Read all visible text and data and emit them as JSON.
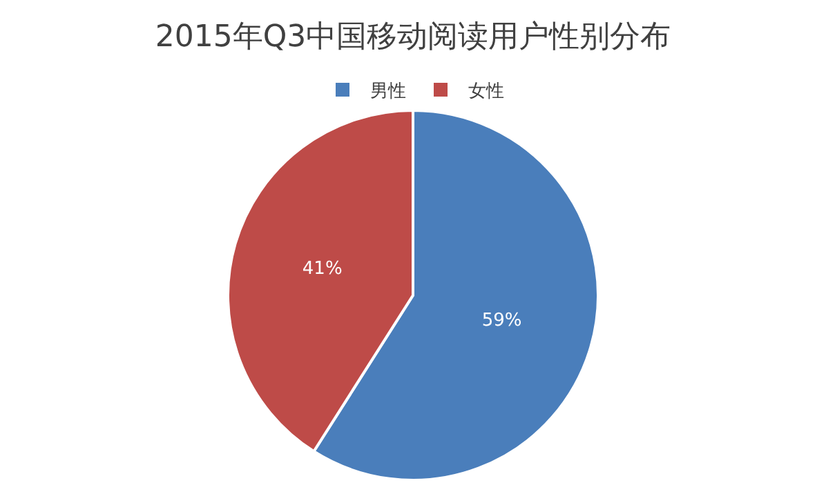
{
  "chart_data": {
    "type": "pie",
    "title": "2015年Q3中国移动阅读用户性别分布",
    "categories": [
      "男性",
      "女性"
    ],
    "values": [
      59,
      41
    ],
    "colors": [
      "#4a7ebb",
      "#be4b48"
    ],
    "value_labels": [
      "59%",
      "41%"
    ],
    "legend": "top"
  }
}
